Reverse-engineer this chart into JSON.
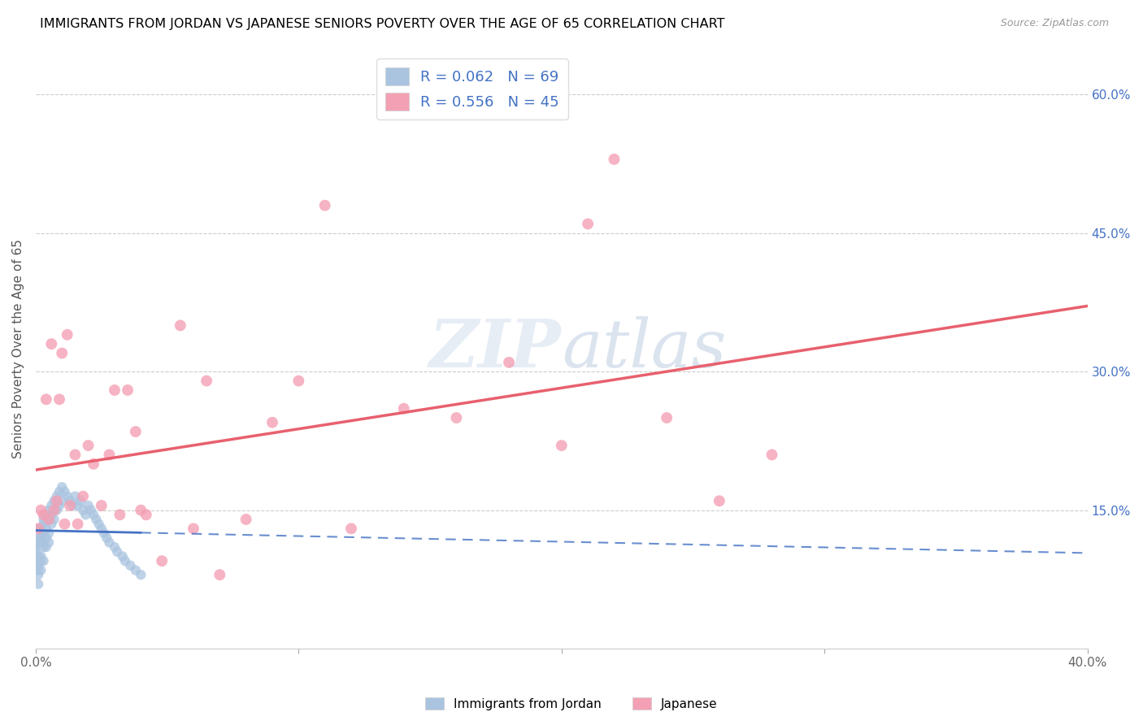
{
  "title": "IMMIGRANTS FROM JORDAN VS JAPANESE SENIORS POVERTY OVER THE AGE OF 65 CORRELATION CHART",
  "source": "Source: ZipAtlas.com",
  "ylabel": "Seniors Poverty Over the Age of 65",
  "xlabel_jordan": "Immigrants from Jordan",
  "xlabel_japanese": "Japanese",
  "xlim": [
    0.0,
    0.4
  ],
  "ylim": [
    0.0,
    0.65
  ],
  "y_ticks_right": [
    0.15,
    0.3,
    0.45,
    0.6
  ],
  "y_tick_labels_right": [
    "15.0%",
    "30.0%",
    "45.0%",
    "60.0%"
  ],
  "jordan_R": 0.062,
  "jordan_N": 69,
  "japanese_R": 0.556,
  "japanese_N": 45,
  "jordan_color": "#aac4e0",
  "japanese_color": "#f4a0b4",
  "jordan_line_color": "#4472c4",
  "japanese_line_color": "#e8606e",
  "legend_text_color": "#4472c4",
  "watermark": "ZIPatlas",
  "jordan_x": [
    0.0,
    0.0,
    0.0,
    0.001,
    0.001,
    0.001,
    0.001,
    0.001,
    0.001,
    0.001,
    0.001,
    0.002,
    0.002,
    0.002,
    0.002,
    0.002,
    0.002,
    0.002,
    0.003,
    0.003,
    0.003,
    0.003,
    0.003,
    0.003,
    0.004,
    0.004,
    0.004,
    0.004,
    0.005,
    0.005,
    0.005,
    0.005,
    0.006,
    0.006,
    0.006,
    0.007,
    0.007,
    0.007,
    0.008,
    0.008,
    0.009,
    0.009,
    0.01,
    0.01,
    0.011,
    0.012,
    0.013,
    0.014,
    0.015,
    0.016,
    0.017,
    0.018,
    0.019,
    0.02,
    0.021,
    0.022,
    0.023,
    0.024,
    0.025,
    0.026,
    0.027,
    0.028,
    0.03,
    0.031,
    0.033,
    0.034,
    0.036,
    0.038,
    0.04
  ],
  "jordan_y": [
    0.105,
    0.11,
    0.095,
    0.13,
    0.115,
    0.12,
    0.1,
    0.09,
    0.085,
    0.08,
    0.07,
    0.125,
    0.115,
    0.13,
    0.12,
    0.1,
    0.095,
    0.085,
    0.135,
    0.125,
    0.14,
    0.115,
    0.11,
    0.095,
    0.145,
    0.13,
    0.12,
    0.11,
    0.15,
    0.14,
    0.125,
    0.115,
    0.155,
    0.145,
    0.135,
    0.16,
    0.15,
    0.14,
    0.165,
    0.15,
    0.17,
    0.155,
    0.175,
    0.16,
    0.17,
    0.165,
    0.16,
    0.155,
    0.165,
    0.155,
    0.16,
    0.15,
    0.145,
    0.155,
    0.15,
    0.145,
    0.14,
    0.135,
    0.13,
    0.125,
    0.12,
    0.115,
    0.11,
    0.105,
    0.1,
    0.095,
    0.09,
    0.085,
    0.08
  ],
  "japanese_x": [
    0.001,
    0.002,
    0.003,
    0.004,
    0.005,
    0.006,
    0.007,
    0.008,
    0.009,
    0.01,
    0.011,
    0.012,
    0.013,
    0.015,
    0.016,
    0.018,
    0.02,
    0.022,
    0.025,
    0.028,
    0.03,
    0.032,
    0.035,
    0.038,
    0.04,
    0.042,
    0.048,
    0.055,
    0.06,
    0.065,
    0.07,
    0.08,
    0.09,
    0.1,
    0.11,
    0.12,
    0.14,
    0.16,
    0.18,
    0.2,
    0.21,
    0.22,
    0.24,
    0.26,
    0.28
  ],
  "japanese_y": [
    0.13,
    0.15,
    0.145,
    0.27,
    0.14,
    0.33,
    0.15,
    0.16,
    0.27,
    0.32,
    0.135,
    0.34,
    0.155,
    0.21,
    0.135,
    0.165,
    0.22,
    0.2,
    0.155,
    0.21,
    0.28,
    0.145,
    0.28,
    0.235,
    0.15,
    0.145,
    0.095,
    0.35,
    0.13,
    0.29,
    0.08,
    0.14,
    0.245,
    0.29,
    0.48,
    0.13,
    0.26,
    0.25,
    0.31,
    0.22,
    0.46,
    0.53,
    0.25,
    0.16,
    0.21
  ]
}
